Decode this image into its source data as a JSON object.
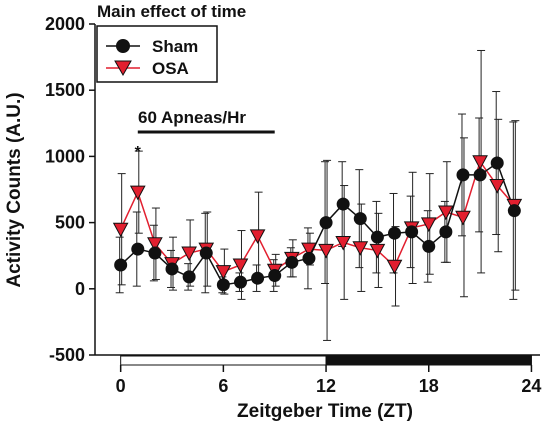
{
  "chart_data": {
    "type": "line",
    "title": "Main effect of time",
    "xlabel": "Zeitgeber Time (ZT)",
    "ylabel": "Activity Counts (A.U.)",
    "xlim": [
      -1.5,
      24.5
    ],
    "ylim": [
      -500,
      2000
    ],
    "xticks": [
      0,
      6,
      12,
      18,
      24
    ],
    "yticks": [
      -500,
      0,
      500,
      1000,
      1500,
      2000
    ],
    "grid": false,
    "legend": "top-left",
    "x": [
      0,
      1,
      2,
      3,
      4,
      5,
      6,
      7,
      8,
      9,
      10,
      11,
      12,
      13,
      14,
      15,
      16,
      17,
      18,
      19,
      20,
      21,
      22,
      23
    ],
    "series": [
      {
        "name": "Sham",
        "color": "#111111",
        "marker": "circle",
        "values": [
          180,
          300,
          270,
          150,
          90,
          270,
          30,
          50,
          80,
          100,
          200,
          230,
          500,
          640,
          530,
          390,
          420,
          430,
          320,
          430,
          860,
          860,
          950,
          590
        ],
        "errors": [
          210,
          280,
          210,
          140,
          100,
          300,
          60,
          70,
          100,
          120,
          110,
          230,
          460,
          320,
          370,
          270,
          300,
          270,
          270,
          230,
          460,
          430,
          540,
          670
        ]
      },
      {
        "name": "OSA",
        "color": "#e21f2f",
        "marker": "triangle-down",
        "values": [
          450,
          730,
          340,
          190,
          270,
          300,
          130,
          180,
          400,
          140,
          230,
          300,
          290,
          350,
          310,
          290,
          170,
          460,
          490,
          580,
          540,
          960,
          780,
          630
        ],
        "errors": [
          420,
          310,
          270,
          200,
          250,
          280,
          170,
          260,
          330,
          120,
          140,
          120,
          680,
          430,
          330,
          280,
          300,
          420,
          380,
          380,
          600,
          840,
          500,
          640
        ]
      }
    ],
    "annotations": {
      "apnea_label": "60 Apneas/Hr",
      "apnea_range": [
        1,
        9
      ],
      "star_label": "*",
      "star_x": 1
    },
    "light_dark_bar": [
      {
        "phase": "light",
        "from": 0,
        "to": 12
      },
      {
        "phase": "dark",
        "from": 12,
        "to": 24
      }
    ]
  }
}
